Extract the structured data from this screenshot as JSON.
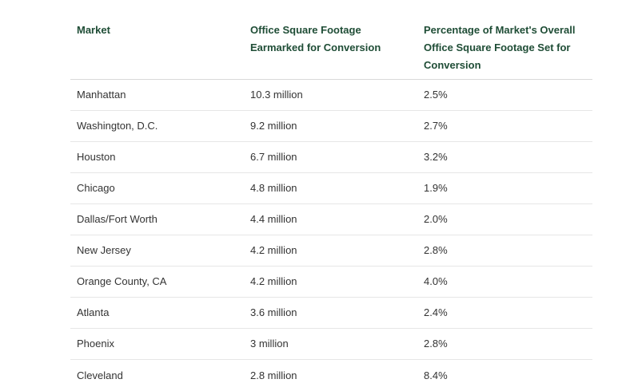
{
  "table": {
    "headers": [
      "Market",
      "Office Square Footage Earmarked for Conversion",
      "Percentage of Market's Overall Office Square Footage Set for Conversion"
    ],
    "rows": [
      [
        "Manhattan",
        "10.3 million",
        "2.5%"
      ],
      [
        "Washington, D.C.",
        "9.2 million",
        "2.7%"
      ],
      [
        "Houston",
        "6.7 million",
        "3.2%"
      ],
      [
        "Chicago",
        "4.8 million",
        "1.9%"
      ],
      [
        "Dallas/Fort Worth",
        "4.4 million",
        "2.0%"
      ],
      [
        "New Jersey",
        "4.2 million",
        "2.8%"
      ],
      [
        "Orange County, CA",
        "4.2 million",
        "4.0%"
      ],
      [
        "Atlanta",
        "3.6 million",
        "2.4%"
      ],
      [
        "Phoenix",
        "3 million",
        "2.8%"
      ],
      [
        "Cleveland",
        "2.8 million",
        "8.4%"
      ]
    ]
  },
  "colors": {
    "header_text": "#1f4d36",
    "body_text": "#333333",
    "divider": "#e6e6e6"
  }
}
